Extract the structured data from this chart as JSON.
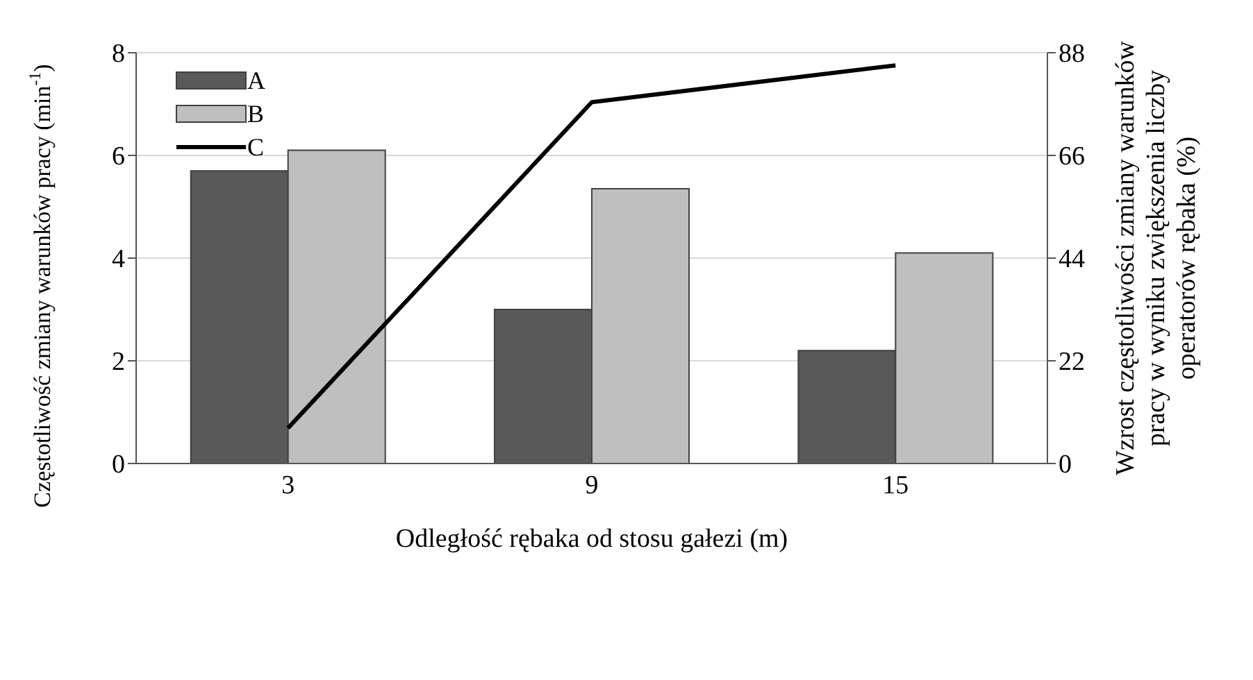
{
  "chart_data": {
    "type": "bar",
    "categories": [
      "3",
      "9",
      "15"
    ],
    "xlabel": "Odległość rębaka od stosu gałezi (m)",
    "ylabel": "Częstotliwość zmiany warunków pracy (min$^{-1}$)",
    "y2label": "Wzrost częstotliwości zmiany warunków pracy w wyniku zwiększenia liczby operatorów rębaka (%)",
    "ylim": [
      0,
      8
    ],
    "yticks": [
      0,
      2,
      4,
      6,
      8
    ],
    "y2lim": [
      0,
      88
    ],
    "y2ticks": [
      0,
      22,
      44,
      66,
      88
    ],
    "grid": "y",
    "legend": "top left",
    "series": [
      {
        "name": "A",
        "color": "#595959",
        "values": [
          5.7,
          3.0,
          2.2
        ]
      },
      {
        "name": "B",
        "color": "#bfbfbf",
        "values": [
          6.1,
          5.35,
          4.1
        ]
      },
      {
        "name": "C",
        "type": "line",
        "axis": "y2",
        "color": "#000000",
        "values": [
          7.6,
          77.4,
          85.3
        ]
      }
    ]
  }
}
